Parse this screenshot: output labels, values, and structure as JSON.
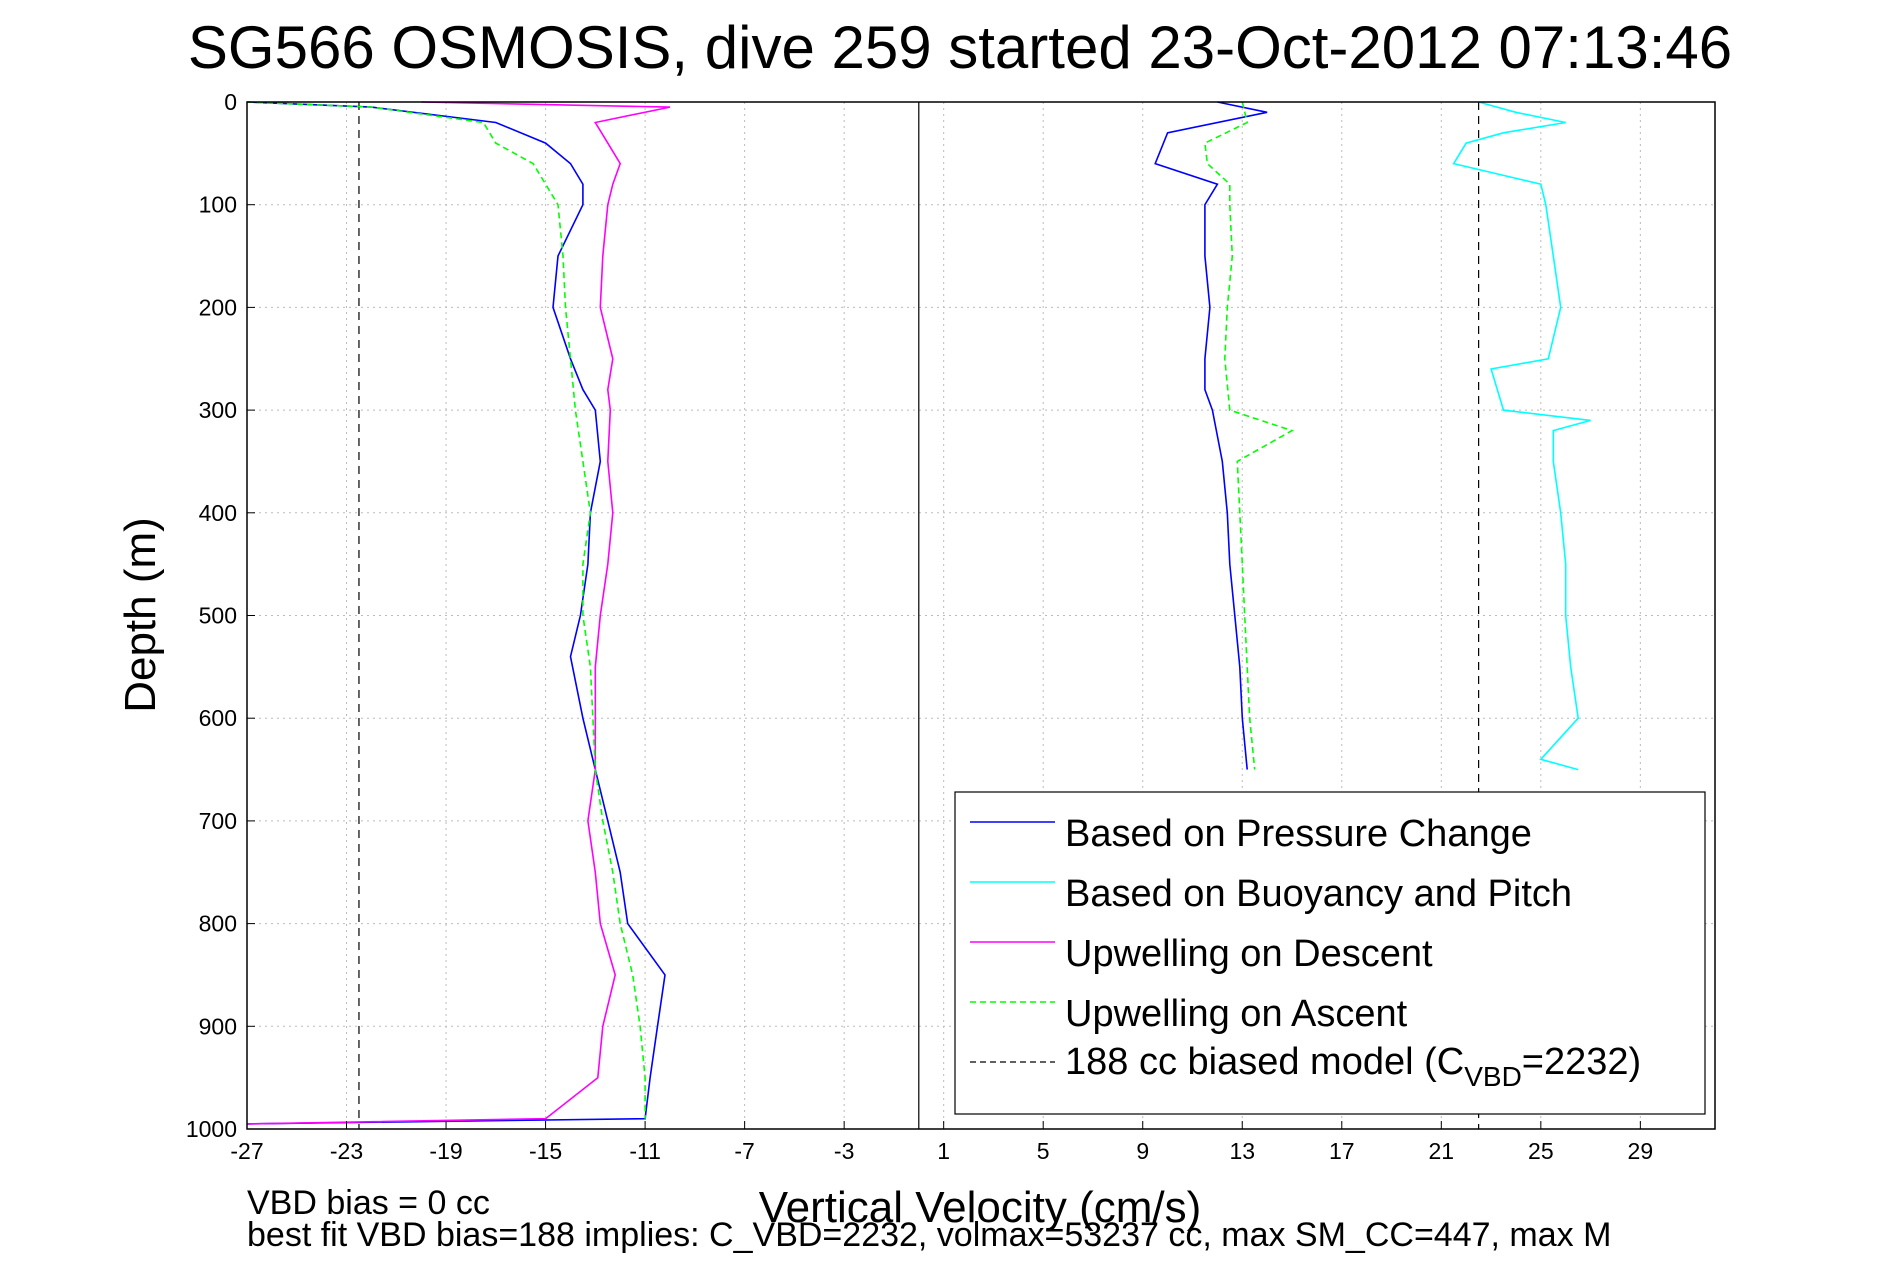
{
  "chart_data": {
    "type": "line",
    "title": "SG566 OSMOSIS, dive 259 started 23-Oct-2012 07:13:46",
    "xlabel": "Vertical Velocity (cm/s)",
    "ylabel": "Depth (m)",
    "xlim": [
      -27,
      32
    ],
    "ylim": [
      0,
      1000
    ],
    "y_reversed": true,
    "grid": true,
    "x_ticks": [
      -27,
      -23,
      -19,
      -15,
      -11,
      -7,
      -3,
      1,
      5,
      9,
      13,
      17,
      21,
      25,
      29
    ],
    "y_ticks": [
      0,
      100,
      200,
      300,
      400,
      500,
      600,
      700,
      800,
      900,
      1000
    ],
    "legend_position": "bottom-right",
    "legend": [
      {
        "label": "Based on Pressure Change",
        "color": "#0000ff",
        "dash": "solid"
      },
      {
        "label": "Based on Buoyancy and Pitch",
        "color": "#00ffff",
        "dash": "solid"
      },
      {
        "label": "Upwelling on Descent",
        "color": "#ff00ff",
        "dash": "solid"
      },
      {
        "label": "Upwelling on Ascent",
        "color": "#00ff00",
        "dash": "dashed"
      },
      {
        "label_main": "188 cc biased model (C",
        "label_sub": "VBD",
        "label_end": "=2232)",
        "color": "#000000",
        "dash": "dashed"
      }
    ],
    "reference_lines": [
      {
        "x": -22.5,
        "color": "#000000",
        "dash": "dashed"
      },
      {
        "x": 22.5,
        "color": "#000000",
        "dash": "dashed"
      },
      {
        "x": 0,
        "color": "#000000",
        "dash": "solid"
      }
    ],
    "series": [
      {
        "name": "Based on Pressure Change",
        "color": "#0000ff",
        "dash": "solid",
        "descent": {
          "depth": [
            0,
            5,
            20,
            40,
            60,
            80,
            100,
            150,
            200,
            250,
            280,
            300,
            350,
            400,
            450,
            500,
            540,
            600,
            650,
            700,
            750,
            800,
            850,
            900,
            950,
            990,
            995
          ],
          "velocity": [
            -27,
            -22,
            -17,
            -15,
            -14,
            -13.5,
            -13.5,
            -14.5,
            -14.7,
            -14,
            -13.5,
            -13,
            -12.8,
            -13.2,
            -13.3,
            -13.6,
            -14,
            -13.5,
            -13,
            -12.5,
            -12,
            -11.7,
            -10.2,
            -10.5,
            -10.8,
            -11,
            -27
          ]
        },
        "ascent": {
          "depth": [
            0,
            10,
            30,
            60,
            80,
            100,
            150,
            200,
            250,
            280,
            300,
            350,
            400,
            450,
            500,
            550,
            600,
            650
          ],
          "velocity": [
            12,
            14,
            10,
            9.5,
            12,
            11.5,
            11.5,
            11.7,
            11.5,
            11.5,
            11.8,
            12.2,
            12.4,
            12.5,
            12.7,
            12.9,
            13,
            13.2
          ]
        }
      },
      {
        "name": "Based on Buoyancy and Pitch",
        "color": "#00ffff",
        "dash": "solid",
        "depth": [
          0,
          10,
          20,
          30,
          40,
          60,
          80,
          100,
          150,
          200,
          250,
          260,
          300,
          310,
          320,
          350,
          400,
          450,
          500,
          550,
          600,
          640,
          650
        ],
        "velocity": [
          22.5,
          24,
          26,
          23.5,
          22,
          21.5,
          25,
          25.2,
          25.5,
          25.8,
          25.3,
          23,
          23.5,
          27,
          25.5,
          25.5,
          25.8,
          26,
          26,
          26.2,
          26.5,
          25,
          26.5
        ]
      },
      {
        "name": "Upwelling on Descent",
        "color": "#ff00ff",
        "dash": "solid",
        "depth": [
          0,
          5,
          20,
          40,
          60,
          80,
          100,
          150,
          200,
          250,
          280,
          300,
          350,
          400,
          450,
          500,
          550,
          600,
          650,
          700,
          750,
          800,
          850,
          900,
          950,
          990,
          995
        ],
        "velocity": [
          -20,
          -10,
          -13,
          -12.5,
          -12,
          -12.3,
          -12.5,
          -12.7,
          -12.8,
          -12.3,
          -12.5,
          -12.4,
          -12.5,
          -12.3,
          -12.5,
          -12.8,
          -13,
          -13,
          -13,
          -13.3,
          -13,
          -12.8,
          -12.2,
          -12.7,
          -12.9,
          -15,
          -27
        ]
      },
      {
        "name": "Upwelling on Ascent",
        "color": "#00ff00",
        "dash": "dashed",
        "descent": {
          "depth": [
            0,
            5,
            20,
            40,
            60,
            80,
            100,
            150,
            200,
            250,
            300,
            350,
            400,
            450,
            500,
            550,
            600,
            650,
            700,
            750,
            800,
            850,
            900,
            950,
            990
          ],
          "velocity": [
            -27,
            -22,
            -17.5,
            -17,
            -15.5,
            -15,
            -14.5,
            -14.3,
            -14.2,
            -14,
            -13.8,
            -13.5,
            -13.2,
            -13.5,
            -13.5,
            -13.2,
            -13.1,
            -13,
            -12.7,
            -12.3,
            -12,
            -11.5,
            -11.2,
            -11,
            -11
          ]
        },
        "ascent": {
          "depth": [
            0,
            20,
            40,
            60,
            80,
            100,
            150,
            200,
            250,
            300,
            320,
            350,
            400,
            450,
            500,
            550,
            600,
            650
          ],
          "velocity": [
            13,
            13.2,
            11.5,
            11.6,
            12.5,
            12.5,
            12.6,
            12.4,
            12.3,
            12.5,
            15,
            12.8,
            12.9,
            13,
            13.1,
            13.2,
            13.3,
            13.5
          ]
        }
      }
    ],
    "legend_items_text": {
      "0": "Based on Pressure Change",
      "1": "Based on Buoyancy and Pitch",
      "2": "Upwelling on Descent",
      "3": "Upwelling on Ascent"
    }
  },
  "footer": {
    "line1": "VBD bias = 0 cc",
    "line2": "best fit VBD bias=188 implies: C_VBD=2232, volmax=53237 cc, max SM_CC=447, max M"
  }
}
